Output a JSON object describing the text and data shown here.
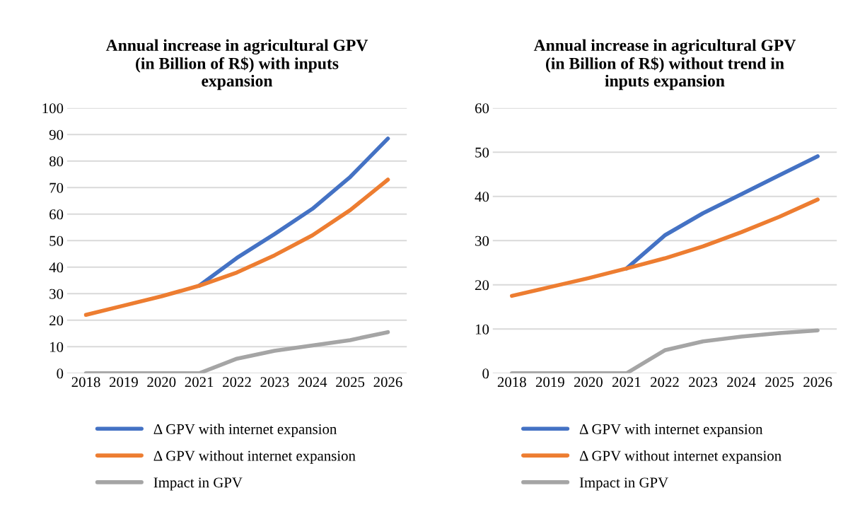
{
  "chart_data": [
    {
      "type": "line",
      "title": "Annual increase in agricultural GPV\n(in Billion of R$) with inputs\nexpansion",
      "categories": [
        "2018",
        "2019",
        "2020",
        "2021",
        "2022",
        "2023",
        "2024",
        "2025",
        "2026"
      ],
      "ylim": [
        0,
        100
      ],
      "yticks": [
        0,
        10,
        20,
        30,
        40,
        50,
        60,
        70,
        80,
        90,
        100
      ],
      "grid": "y",
      "legend": "bottom",
      "marker": "none",
      "line_style": "solid",
      "series": [
        {
          "name": "Δ GPV with internet expansion",
          "color": "#4472c4",
          "values": [
            null,
            null,
            null,
            33,
            43.5,
            52.5,
            62,
            74,
            88.5
          ]
        },
        {
          "name": "Δ GPV without internet expansion",
          "color": "#ed7d31",
          "values": [
            22,
            25.5,
            29,
            33,
            38,
            44.5,
            52,
            61.5,
            73
          ]
        },
        {
          "name": "Impact in GPV",
          "color": "#a5a5a5",
          "values": [
            0,
            0,
            0,
            0,
            5.5,
            8.5,
            10.5,
            12.5,
            15.5
          ]
        }
      ]
    },
    {
      "type": "line",
      "title": "Annual increase in agricultural GPV\n(in Billion of R$) without trend in\ninputs expansion",
      "categories": [
        "2018",
        "2019",
        "2020",
        "2021",
        "2022",
        "2023",
        "2024",
        "2025",
        "2026"
      ],
      "ylim": [
        0,
        60
      ],
      "yticks": [
        0,
        10,
        20,
        30,
        40,
        50,
        60
      ],
      "grid": "y",
      "legend": "bottom",
      "marker": "none",
      "line_style": "solid",
      "series": [
        {
          "name": "Δ GPV with internet expansion",
          "color": "#4472c4",
          "values": [
            null,
            null,
            null,
            23.7,
            31.2,
            36.2,
            40.5,
            44.8,
            49.1
          ]
        },
        {
          "name": "Δ GPV without internet expansion",
          "color": "#ed7d31",
          "values": [
            17.5,
            19.5,
            21.5,
            23.7,
            26,
            28.7,
            31.9,
            35.4,
            39.3
          ]
        },
        {
          "name": "Impact in GPV",
          "color": "#a5a5a5",
          "values": [
            0,
            0,
            0,
            0,
            5.2,
            7.2,
            8.3,
            9.1,
            9.7
          ]
        }
      ]
    }
  ]
}
